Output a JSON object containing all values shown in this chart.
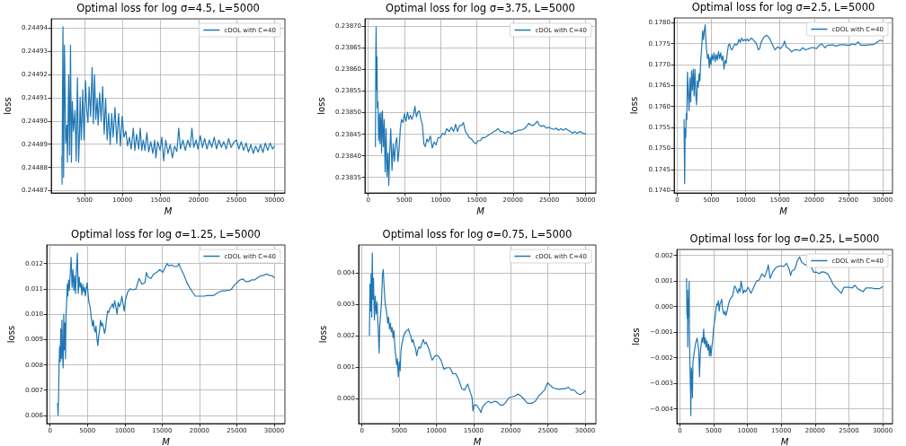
{
  "chart_data": [
    {
      "type": "line",
      "title": "Optimal loss for log σ=4.5, L=5000",
      "xlabel": "M",
      "ylabel": "loss",
      "grid": true,
      "legend": "top right",
      "marker": "none",
      "line_style": "solid",
      "xlim": [
        600,
        31400
      ],
      "xticks": [
        5000,
        10000,
        15000,
        20000,
        25000,
        30000
      ],
      "ylim": [
        0.244869,
        0.244944
      ],
      "yticks": [
        0.24487,
        0.24488,
        0.24489,
        {
          "value": 0.2449,
          "label": "0.24490"
        },
        0.24491,
        0.24492,
        0.24493,
        0.24494
      ],
      "x": [
        2000,
        2030,
        2090,
        2150,
        2230,
        2350,
        2500,
        2660,
        2740,
        2900,
        3020,
        3140,
        3260,
        3380,
        3530,
        3730,
        3890,
        4050,
        4210,
        4330,
        4410,
        4560,
        4760,
        4920,
        5120,
        5280,
        5440,
        5590,
        5790,
        5990,
        6150,
        6310,
        6470,
        6660,
        6780,
        6980,
        7180,
        7380,
        7580,
        7770,
        7970,
        8170,
        8370,
        8570,
        8760,
        9000,
        9240,
        9480,
        9720,
        9950,
        10190,
        10430,
        10670,
        10900,
        11140,
        11420,
        11620,
        11850,
        12130,
        12330,
        12530,
        12730,
        12960,
        13200,
        13440,
        13720,
        13990,
        14230,
        14390,
        14630,
        14950,
        15180,
        15420,
        15700,
        15980,
        16290,
        16570,
        16850,
        17160,
        17400,
        17640,
        17960,
        18270,
        18590,
        18910,
        19140,
        19380,
        19700,
        19940,
        20250,
        20530,
        20810,
        21130,
        21440,
        21760,
        22080,
        22390,
        22710,
        23030,
        23340,
        23660,
        23980,
        24300,
        24610,
        25010,
        25330,
        25640,
        25960,
        26280,
        26590,
        26910,
        27230,
        27540,
        27860,
        28180,
        28500,
        28810,
        29130,
        29450,
        29760,
        30000
      ],
      "series": [
        {
          "name": "cDOL with C=40",
          "color": "#1f77b4",
          "values": [
            0.2448847,
            0.2448728,
            0.2449122,
            0.2449406,
            0.2448758,
            0.2449327,
            0.2448905,
            0.2448982,
            0.2448822,
            0.2449199,
            0.2448854,
            0.2449327,
            0.2448822,
            0.2449084,
            0.2448956,
            0.2449046,
            0.2448828,
            0.2449186,
            0.2448822,
            0.2448943,
            0.2449103,
            0.2448918,
            0.2449135,
            0.2448918,
            0.2449174,
            0.2449046,
            0.2448994,
            0.2449148,
            0.244902,
            0.2449231,
            0.2448988,
            0.2449199,
            0.2449007,
            0.2449097,
            0.2448982,
            0.2449122,
            0.2449001,
            0.2449148,
            0.2448943,
            0.2449097,
            0.2448918,
            0.2449033,
            0.2448898,
            0.2449033,
            0.244893,
            0.2449058,
            0.2448905,
            0.2449033,
            0.2448892,
            0.244902,
            0.244893,
            0.2448956,
            0.2448892,
            0.244893,
            0.2448879,
            0.2448969,
            0.2448873,
            0.2448943,
            0.2448879,
            0.2448969,
            0.2448873,
            0.2448918,
            0.2448873,
            0.244895,
            0.2448866,
            0.2448911,
            0.244886,
            0.2448918,
            0.2448841,
            0.2448911,
            0.2448873,
            0.244893,
            0.2448828,
            0.2448918,
            0.244886,
            0.2448898,
            0.2448841,
            0.2448892,
            0.2448869,
            0.2448969,
            0.2448879,
            0.2448918,
            0.2448873,
            0.2448918,
            0.2448886,
            0.2448969,
            0.2448886,
            0.2448918,
            0.2448879,
            0.2448937,
            0.2448886,
            0.2448924,
            0.2448879,
            0.2448918,
            0.2448886,
            0.244893,
            0.2448879,
            0.2448918,
            0.2448886,
            0.2448911,
            0.2448879,
            0.2448924,
            0.2448886,
            0.2448905,
            0.2448918,
            0.2448879,
            0.2448911,
            0.2448873,
            0.2448905,
            0.2448866,
            0.2448898,
            0.244886,
            0.2448892,
            0.2448866,
            0.2448898,
            0.2448864,
            0.2448905,
            0.2448873,
            0.2448905,
            0.2448879,
            0.2448892
          ]
        }
      ]
    },
    {
      "type": "line",
      "title": "Optimal loss for log σ=3.75, L=5000",
      "xlabel": "M",
      "ylabel": "loss",
      "grid": true,
      "legend": "top right",
      "marker": "none",
      "line_style": "solid",
      "xlim": [
        -450,
        31450
      ],
      "xticks": [
        0,
        5000,
        10000,
        15000,
        20000,
        25000,
        30000
      ],
      "ylim": [
        0.238314,
        0.238717
      ],
      "yticks": [
        0.23835,
        {
          "value": 0.2384,
          "label": "0.23840"
        },
        0.23845,
        {
          "value": 0.2385,
          "label": "0.23850"
        },
        0.23855,
        {
          "value": 0.2386,
          "label": "0.23860"
        },
        0.23865,
        {
          "value": 0.2387,
          "label": "0.23870"
        }
      ],
      "x": [
        1000,
        1030,
        1060,
        1100,
        1160,
        1220,
        1270,
        1360,
        1440,
        1560,
        1640,
        1770,
        1850,
        1970,
        2100,
        2220,
        2340,
        2470,
        2590,
        2750,
        2840,
        2960,
        3120,
        3290,
        3450,
        3620,
        3780,
        3950,
        4110,
        4270,
        4440,
        4600,
        4810,
        5010,
        5220,
        5430,
        5630,
        5840,
        6040,
        6250,
        6450,
        6660,
        6860,
        7070,
        7280,
        7480,
        7690,
        7890,
        8100,
        8300,
        8590,
        8840,
        9120,
        9370,
        9660,
        9950,
        10280,
        10560,
        10850,
        11180,
        11510,
        11800,
        12080,
        12330,
        12620,
        12910,
        13150,
        13440,
        13730,
        13970,
        14260,
        14550,
        14880,
        15170,
        15500,
        15780,
        16110,
        16440,
        16730,
        17020,
        17340,
        17670,
        17960,
        18250,
        18580,
        18910,
        19190,
        19520,
        19810,
        20140,
        20430,
        20710,
        21040,
        21370,
        21660,
        21950,
        22190,
        22480,
        22770,
        23100,
        23350,
        23630,
        23920,
        24250,
        24580,
        24950,
        25280,
        25650,
        25980,
        26300,
        26630,
        26960,
        27290,
        27620,
        27950,
        28240,
        28520,
        28850,
        29260,
        29670,
        30000
      ],
      "series": [
        {
          "name": "cDOL with C=40",
          "color": "#1f77b4",
          "values": [
            0.238421,
            0.238518,
            0.23865,
            0.238698,
            0.238553,
            0.238629,
            0.238511,
            0.238525,
            0.238435,
            0.238497,
            0.238428,
            0.238501,
            0.238407,
            0.238504,
            0.238421,
            0.238484,
            0.238363,
            0.238463,
            0.238352,
            0.238407,
            0.238331,
            0.238401,
            0.238463,
            0.238366,
            0.238428,
            0.238387,
            0.238428,
            0.238442,
            0.238387,
            0.238414,
            0.238463,
            0.238484,
            0.238477,
            0.238497,
            0.23848,
            0.238501,
            0.238484,
            0.238494,
            0.238484,
            0.238494,
            0.238515,
            0.23849,
            0.238501,
            0.238504,
            0.238484,
            0.238473,
            0.238428,
            0.238421,
            0.238439,
            0.238432,
            0.238446,
            0.238418,
            0.238432,
            0.238425,
            0.238442,
            0.238442,
            0.238452,
            0.238449,
            0.238463,
            0.238456,
            0.238466,
            0.238456,
            0.238473,
            0.238456,
            0.23847,
            0.23847,
            0.238477,
            0.238456,
            0.238449,
            0.238442,
            0.238439,
            0.238432,
            0.238428,
            0.238435,
            0.238435,
            0.238442,
            0.238442,
            0.238446,
            0.238449,
            0.238452,
            0.238456,
            0.238459,
            0.238463,
            0.238456,
            0.238456,
            0.238452,
            0.238456,
            0.238454,
            0.23845,
            0.238456,
            0.238456,
            0.238459,
            0.238459,
            0.238461,
            0.238464,
            0.23847,
            0.238475,
            0.238471,
            0.23847,
            0.238475,
            0.23848,
            0.238471,
            0.238468,
            0.23847,
            0.238464,
            0.238466,
            0.238463,
            0.238461,
            0.238464,
            0.238459,
            0.238463,
            0.238459,
            0.238463,
            0.238459,
            0.238456,
            0.238452,
            0.238456,
            0.238452,
            0.238456,
            0.238452,
            0.238451
          ]
        }
      ]
    },
    {
      "type": "line",
      "title": "Optimal loss for log σ=2.5, L=5000",
      "xlabel": "M",
      "ylabel": "loss",
      "grid": true,
      "legend": "top right",
      "marker": "none",
      "line_style": "solid",
      "xlim": [
        -450,
        31450
      ],
      "xticks": [
        0,
        5000,
        10000,
        15000,
        20000,
        25000,
        30000
      ],
      "ylim": [
        0.17394,
        0.17811
      ],
      "yticks": [
        {
          "value": 0.174,
          "label": "0.1740"
        },
        0.1745,
        {
          "value": 0.175,
          "label": "0.1750"
        },
        0.1755,
        {
          "value": 0.176,
          "label": "0.1760"
        },
        0.1765,
        {
          "value": 0.177,
          "label": "0.1770"
        },
        0.1775,
        {
          "value": 0.178,
          "label": "0.1780"
        }
      ],
      "x": [
        1000,
        1030,
        1090,
        1170,
        1250,
        1330,
        1410,
        1500,
        1620,
        1740,
        1860,
        1980,
        2100,
        2220,
        2350,
        2470,
        2590,
        2710,
        2830,
        2950,
        3070,
        3200,
        3320,
        3440,
        3600,
        3720,
        3840,
        3960,
        4090,
        4210,
        4330,
        4450,
        4570,
        4690,
        4810,
        4930,
        5060,
        5220,
        5380,
        5540,
        5700,
        5870,
        6030,
        6190,
        6350,
        6510,
        6670,
        6840,
        7000,
        7160,
        7320,
        7480,
        7650,
        7810,
        8010,
        8210,
        8410,
        8620,
        8820,
        9020,
        9220,
        9420,
        9630,
        9830,
        10030,
        10230,
        10440,
        10640,
        10840,
        11040,
        11250,
        11450,
        11650,
        11850,
        12050,
        12260,
        12660,
        13070,
        13470,
        13870,
        14280,
        14680,
        15090,
        15490,
        15690,
        15900,
        16300,
        16710,
        17110,
        17510,
        17920,
        18320,
        18730,
        19130,
        19540,
        19940,
        20350,
        20750,
        21160,
        21560,
        21960,
        22370,
        22770,
        23180,
        23580,
        23990,
        24390,
        24800,
        25200,
        25600,
        26010,
        26410,
        26820,
        27220,
        27630,
        28030,
        28440,
        28840,
        29250,
        29650,
        30000
      ],
      "series": [
        {
          "name": "cDOL with C=40",
          "color": "#1f77b4",
          "values": [
            0.17569,
            0.17519,
            0.17416,
            0.17547,
            0.17526,
            0.17583,
            0.17569,
            0.17682,
            0.17632,
            0.1759,
            0.17668,
            0.17611,
            0.17685,
            0.17639,
            0.17689,
            0.17625,
            0.17689,
            0.17632,
            0.17604,
            0.17661,
            0.17646,
            0.17678,
            0.17661,
            0.1771,
            0.17746,
            0.17781,
            0.1776,
            0.17781,
            0.17795,
            0.17753,
            0.17728,
            0.17714,
            0.17724,
            0.17692,
            0.17717,
            0.177,
            0.17724,
            0.1771,
            0.17728,
            0.17707,
            0.17724,
            0.1771,
            0.17731,
            0.17714,
            0.17728,
            0.1771,
            0.17721,
            0.17689,
            0.1771,
            0.17703,
            0.17728,
            0.17746,
            0.17749,
            0.17738,
            0.17735,
            0.17742,
            0.17749,
            0.17746,
            0.17749,
            0.1776,
            0.17753,
            0.17763,
            0.17756,
            0.1776,
            0.17756,
            0.17761,
            0.17756,
            0.1776,
            0.17763,
            0.1776,
            0.17756,
            0.17753,
            0.17746,
            0.17735,
            0.17738,
            0.17753,
            0.17765,
            0.1777,
            0.17763,
            0.17749,
            0.17735,
            0.17742,
            0.17738,
            0.17746,
            0.17756,
            0.17742,
            0.17738,
            0.1773,
            0.17735,
            0.17735,
            0.17733,
            0.1774,
            0.17735,
            0.17737,
            0.1774,
            0.1774,
            0.17738,
            0.17746,
            0.17749,
            0.1774,
            0.17746,
            0.17746,
            0.17747,
            0.17744,
            0.17746,
            0.17747,
            0.17747,
            0.17746,
            0.17746,
            0.17749,
            0.17747,
            0.17754,
            0.17746,
            0.17746,
            0.17746,
            0.17747,
            0.17747,
            0.17749,
            0.17754,
            0.17758,
            0.17756
          ]
        }
      ]
    },
    {
      "type": "line",
      "title": "Optimal loss for log σ=1.25, L=5000",
      "xlabel": "M",
      "ylabel": "loss",
      "grid": true,
      "legend": "top right",
      "marker": "none",
      "line_style": "solid",
      "xlim": [
        -450,
        31450
      ],
      "xticks": [
        0,
        5000,
        10000,
        15000,
        20000,
        25000,
        30000
      ],
      "ylim": [
        0.00568,
        0.01273
      ],
      "yticks": [
        0.006,
        0.007,
        0.008,
        0.009,
        {
          "value": 0.01,
          "label": "0.010"
        },
        0.011,
        0.012
      ],
      "x": [
        1000,
        1070,
        1150,
        1190,
        1270,
        1350,
        1430,
        1510,
        1590,
        1670,
        1750,
        1830,
        1910,
        1990,
        2060,
        2140,
        2220,
        2300,
        2380,
        2460,
        2580,
        2700,
        2820,
        2940,
        3060,
        3180,
        3290,
        3410,
        3530,
        3650,
        3770,
        3890,
        4010,
        4130,
        4250,
        4370,
        4490,
        4610,
        4720,
        4840,
        4960,
        5080,
        5200,
        5320,
        5440,
        5560,
        5680,
        5800,
        5920,
        6030,
        6150,
        6270,
        6390,
        6510,
        6630,
        6750,
        6870,
        6990,
        7150,
        7300,
        7420,
        7540,
        7700,
        7860,
        8020,
        8180,
        8340,
        8500,
        8650,
        8810,
        8970,
        9130,
        9290,
        9450,
        9610,
        9770,
        9930,
        10080,
        10240,
        10400,
        10560,
        10720,
        11120,
        11510,
        11910,
        12310,
        12700,
        12900,
        13100,
        13500,
        13900,
        14290,
        14690,
        15090,
        15480,
        15680,
        15880,
        16280,
        16670,
        17070,
        17270,
        17470,
        17870,
        18260,
        18660,
        19060,
        19450,
        19850,
        20250,
        20640,
        21040,
        21440,
        21840,
        22230,
        22630,
        23030,
        23420,
        23820,
        24220,
        24610,
        25010,
        25410,
        25810,
        26200,
        26600,
        27000,
        27390,
        27790,
        28190,
        28580,
        28980,
        29380,
        29780,
        30000
      ],
      "series": [
        {
          "name": "cDOL with C=40",
          "color": "#1f77b4",
          "values": [
            0.00647,
            0.006,
            0.00694,
            0.00788,
            0.00871,
            0.00812,
            0.00941,
            0.00824,
            0.00976,
            0.00835,
            0.00788,
            0.01,
            0.00859,
            0.00965,
            0.00824,
            0.01,
            0.01047,
            0.01118,
            0.01071,
            0.01135,
            0.01094,
            0.01165,
            0.01224,
            0.01106,
            0.01176,
            0.01094,
            0.01153,
            0.01082,
            0.01176,
            0.01241,
            0.01082,
            0.01147,
            0.01106,
            0.01124,
            0.01076,
            0.01118,
            0.01088,
            0.01106,
            0.01071,
            0.011,
            0.01124,
            0.01082,
            0.01047,
            0.01035,
            0.01006,
            0.00976,
            0.00953,
            0.00976,
            0.00941,
            0.00929,
            0.00953,
            0.00906,
            0.00876,
            0.00912,
            0.00941,
            0.00976,
            0.00953,
            0.00965,
            0.00947,
            0.00924,
            0.00941,
            0.00976,
            0.01012,
            0.01006,
            0.01024,
            0.01029,
            0.01041,
            0.01024,
            0.01053,
            0.01029,
            0.01,
            0.01047,
            0.01029,
            0.01041,
            0.01071,
            0.01041,
            0.01012,
            0.01053,
            0.01071,
            0.01088,
            0.01094,
            0.011,
            0.01096,
            0.011,
            0.01141,
            0.01118,
            0.01124,
            0.01165,
            0.01147,
            0.01141,
            0.01159,
            0.01165,
            0.01176,
            0.01165,
            0.01188,
            0.012,
            0.01191,
            0.01194,
            0.01188,
            0.01188,
            0.012,
            0.01182,
            0.01159,
            0.01129,
            0.01106,
            0.01088,
            0.01071,
            0.01071,
            0.01071,
            0.01071,
            0.01073,
            0.01073,
            0.01073,
            0.0108,
            0.01088,
            0.01092,
            0.01092,
            0.01094,
            0.01096,
            0.01112,
            0.01124,
            0.01135,
            0.01139,
            0.01129,
            0.01129,
            0.01135,
            0.01135,
            0.01144,
            0.01151,
            0.01153,
            0.01159,
            0.01153,
            0.01151,
            0.01144
          ]
        }
      ]
    },
    {
      "type": "line",
      "title": "Optimal loss for log σ=0.75, L=5000",
      "xlabel": "M",
      "ylabel": "loss",
      "grid": true,
      "legend": "top right",
      "marker": "none",
      "line_style": "solid",
      "xlim": [
        -450,
        31450
      ],
      "xticks": [
        0,
        5000,
        10000,
        15000,
        20000,
        25000,
        30000
      ],
      "ylim": [
        -0.00079,
        0.0049
      ],
      "yticks": [
        {
          "value": 0,
          "label": "0.000"
        },
        0.001,
        0.002,
        0.003,
        0.004
      ],
      "x": [
        1000,
        1035,
        1070,
        1150,
        1230,
        1310,
        1390,
        1470,
        1550,
        1670,
        1790,
        1910,
        2030,
        2150,
        2230,
        2310,
        2390,
        2510,
        2630,
        2750,
        2860,
        2980,
        3100,
        3220,
        3340,
        3460,
        3580,
        3700,
        3820,
        3940,
        4060,
        4180,
        4300,
        4420,
        4540,
        4660,
        4770,
        4890,
        5010,
        5130,
        5250,
        5370,
        5490,
        5650,
        5850,
        6050,
        6250,
        6410,
        6570,
        6720,
        6880,
        7040,
        7200,
        7360,
        7520,
        7680,
        7840,
        8040,
        8240,
        8440,
        8630,
        9030,
        9430,
        9830,
        10230,
        10620,
        11020,
        11420,
        11820,
        12220,
        12610,
        13010,
        13410,
        13810,
        14210,
        14600,
        14800,
        14920,
        15080,
        15400,
        15800,
        16000,
        16190,
        16590,
        16990,
        17390,
        17790,
        18180,
        18580,
        18980,
        19380,
        19780,
        20170,
        20570,
        20970,
        21370,
        21770,
        22160,
        22560,
        22960,
        23360,
        23750,
        24150,
        24550,
        24950,
        25350,
        25740,
        26140,
        26540,
        26940,
        27340,
        27730,
        28130,
        28530,
        28930,
        29330,
        29720,
        30000
      ],
      "series": [
        {
          "name": "cDOL with C=40",
          "color": "#1f77b4",
          "values": [
            0.00203,
            0.0027,
            0.00365,
            0.00279,
            0.00398,
            0.0026,
            0.00465,
            0.00317,
            0.00384,
            0.00251,
            0.00327,
            0.0027,
            0.00308,
            0.00241,
            0.00194,
            0.00146,
            0.00232,
            0.0027,
            0.00308,
            0.00393,
            0.00412,
            0.00355,
            0.00308,
            0.00289,
            0.0027,
            0.00241,
            0.0026,
            0.00222,
            0.00241,
            0.00213,
            0.00227,
            0.00194,
            0.00218,
            0.00165,
            0.00137,
            0.00108,
            0.00127,
            0.0007,
            0.00118,
            0.00089,
            0.00156,
            0.00175,
            0.00189,
            0.00203,
            0.00213,
            0.00218,
            0.00222,
            0.00208,
            0.00199,
            0.0018,
            0.00189,
            0.0017,
            0.00161,
            0.00137,
            0.00156,
            0.00165,
            0.00161,
            0.00175,
            0.00189,
            0.00175,
            0.0018,
            0.00156,
            0.00123,
            0.00137,
            0.00137,
            0.00123,
            0.00094,
            0.00099,
            0.00099,
            0.0008,
            0.0008,
            0.00061,
            0.00032,
            0.00028,
            0.00047,
            0.00018,
            4e-05,
            -0.00039,
            -0.0002,
            -0.0002,
            -0.00034,
            -0.00044,
            -0.00027,
            -0.00015,
            -8e-05,
            -0.00013,
            -8e-05,
            -0.0001,
            -0.0002,
            -0.0002,
            -0.0001,
            4e-05,
            6e-05,
            9e-05,
            0.00015,
            9e-05,
            -1e-05,
            -0.00013,
            -0.00015,
            -0.00013,
            -6e-05,
            9e-05,
            0.00018,
            0.00028,
            0.00051,
            0.00042,
            0.00034,
            0.00032,
            0.0003,
            0.00032,
            0.00032,
            0.00037,
            0.00028,
            0.00028,
            0.00018,
            0.00013,
            0.00018,
            0.00025
          ]
        }
      ]
    },
    {
      "type": "line",
      "title": "Optimal loss for log σ=0.25, L=5000",
      "xlabel": "M",
      "ylabel": "loss",
      "grid": true,
      "legend": "top right",
      "marker": "none",
      "line_style": "solid",
      "xlim": [
        -450,
        31450
      ],
      "xticks": [
        0,
        5000,
        10000,
        15000,
        20000,
        25000,
        30000
      ],
      "ylim": [
        -0.00457,
        0.00223
      ],
      "yticks": [
        {
          "value": -0.004,
          "label": "−0.004"
        },
        {
          "value": -0.003,
          "label": "−0.003"
        },
        {
          "value": -0.002,
          "label": "−0.002"
        },
        {
          "value": -0.001,
          "label": "−0.001"
        },
        {
          "value": 0,
          "label": "0.000"
        },
        0.001,
        0.002
      ],
      "x": [
        1000,
        1040,
        1070,
        1100,
        1140,
        1170,
        1250,
        1290,
        1380,
        1420,
        1500,
        1580,
        1620,
        1700,
        1780,
        1860,
        1940,
        2060,
        2180,
        2310,
        2430,
        2550,
        2670,
        2790,
        2910,
        3030,
        3160,
        3280,
        3400,
        3520,
        3640,
        3760,
        3880,
        4000,
        4130,
        4250,
        4370,
        4490,
        4610,
        4730,
        4850,
        4980,
        5100,
        5220,
        5340,
        5460,
        5580,
        5700,
        5820,
        5950,
        6070,
        6190,
        6310,
        6430,
        6550,
        6670,
        6800,
        6920,
        7040,
        7160,
        7280,
        7440,
        7600,
        7770,
        7930,
        8090,
        8250,
        8410,
        8580,
        8740,
        8900,
        9060,
        9220,
        9380,
        9550,
        9710,
        10110,
        10520,
        10920,
        11330,
        11730,
        12140,
        12540,
        12940,
        13070,
        13350,
        13750,
        14160,
        14560,
        14970,
        15370,
        15780,
        16180,
        16380,
        16580,
        16990,
        17390,
        17720,
        18000,
        18200,
        18610,
        19010,
        19420,
        19820,
        20230,
        20630,
        21030,
        21440,
        21840,
        22250,
        22650,
        23060,
        23460,
        23870,
        24270,
        24670,
        25080,
        25480,
        25890,
        26290,
        26700,
        27100,
        27510,
        27910,
        28320,
        28720,
        29130,
        29530,
        30000
      ],
      "series": [
        {
          "name": "cDOL with C=40",
          "color": "#1f77b4",
          "values": [
            0.0011,
            -0.0003,
            0.00052,
            -0.00047,
            0.00064,
            -0.00158,
            0.00029,
            -0.00041,
            0.00099,
            -0.00088,
            -0.00239,
            -0.00332,
            -0.00426,
            -0.00239,
            -0.00263,
            -0.00356,
            -0.00216,
            -0.00193,
            -0.00169,
            -0.00146,
            -0.00134,
            -0.00123,
            -0.00146,
            -0.00169,
            -0.00274,
            -0.00181,
            -0.00146,
            -0.00123,
            -0.0014,
            -0.00088,
            -0.00146,
            -0.00123,
            -0.00158,
            -0.00134,
            -0.00169,
            -0.00146,
            -0.00193,
            -0.00152,
            -0.00193,
            -0.00158,
            -0.00134,
            -0.00088,
            -0.00064,
            -0.00041,
            -0.00012,
            0.00011,
            5e-05,
            0.00023,
            -0.00018,
            0.00011,
            0.00017,
            0.00029,
            -6e-05,
            -0.00024,
            -0.0003,
            -0.00018,
            -0.00035,
            -0.00024,
            -0.00012,
            5e-05,
            0.00017,
            0.00029,
            0.00035,
            0.0004,
            0.00058,
            0.00081,
            0.00075,
            0.00064,
            0.00052,
            0.0007,
            0.00058,
            0.00099,
            0.00075,
            0.00052,
            0.00064,
            0.00058,
            0.00075,
            0.00052,
            0.00075,
            0.00099,
            0.00104,
            0.00128,
            0.00116,
            0.00145,
            0.00163,
            0.0011,
            0.00136,
            0.00151,
            0.00157,
            0.00159,
            0.00157,
            0.00169,
            0.00145,
            0.00122,
            0.00139,
            0.00145,
            0.0018,
            0.00194,
            0.00174,
            0.00169,
            0.00163,
            0.00157,
            0.00155,
            0.00134,
            0.00134,
            0.00128,
            0.00136,
            0.00134,
            0.00128,
            0.0011,
            0.00087,
            0.00075,
            0.00064,
            0.00052,
            0.00075,
            0.00075,
            0.00075,
            0.00073,
            0.00083,
            0.0007,
            0.00064,
            0.00058,
            0.00073,
            0.00073,
            0.00073,
            0.0007,
            0.0007,
            0.0007,
            0.00078
          ]
        }
      ]
    }
  ]
}
